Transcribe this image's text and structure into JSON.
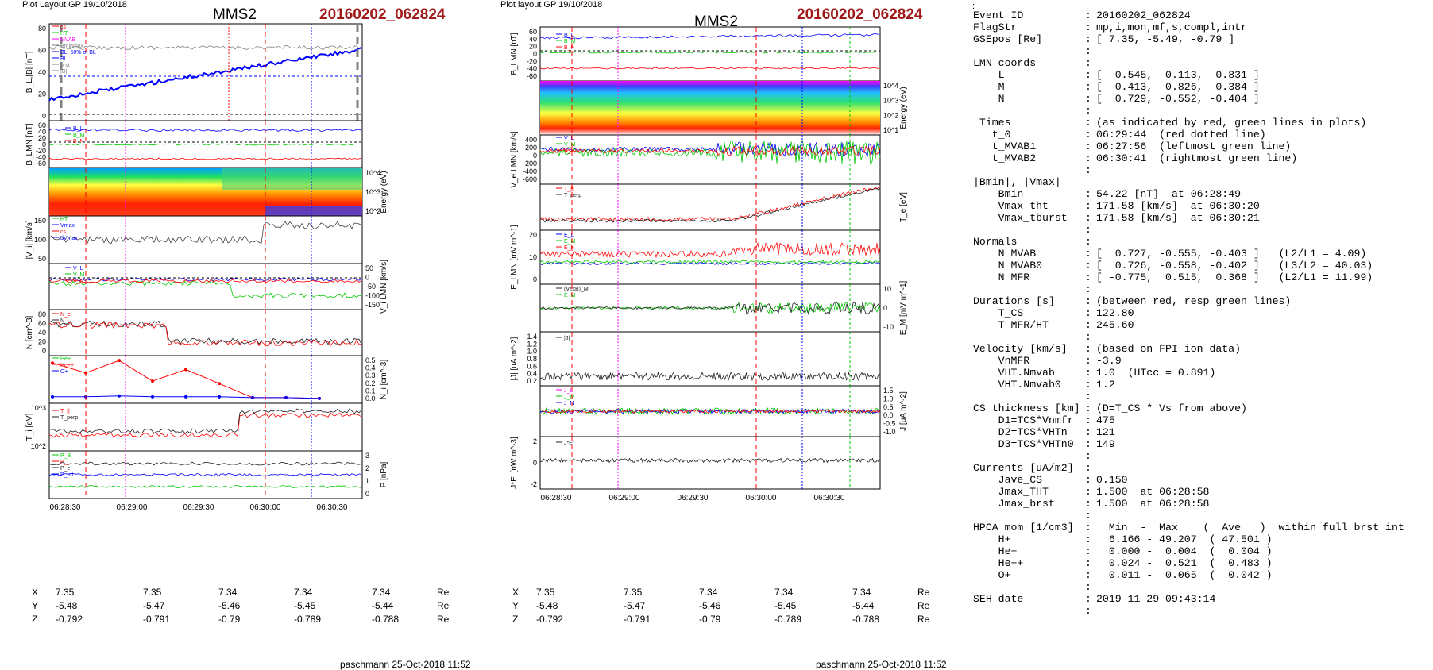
{
  "header": {
    "left_plot_label": "Plot Layout GP 19/10/2018",
    "middle_plot_label": "Plot layout GP 19/10/2018",
    "spacecraft": "MMS2",
    "event": "20160202_062824",
    "top_colon": ":"
  },
  "left_figure": {
    "panels": [
      {
        "ylabel": "B_L,|B| [nT]",
        "ticks": [
          "80",
          "60",
          "40",
          "20",
          "0"
        ],
        "legend": [
          "cs",
          "HT",
          "MVAB",
          "Bminmax",
          "BL, 50% of BL",
          "BL",
          "brst",
          "|B|"
        ]
      },
      {
        "ylabel": "B_LMN [nT]",
        "ticks": [
          "60",
          "40",
          "20",
          "0",
          "-20",
          "-40",
          "-60"
        ],
        "legend": [
          "B_L",
          "B_M",
          "B_N"
        ]
      },
      {
        "ylabel": "Energy (eV)",
        "ticks": [
          "10^4",
          "10^3",
          "10^2"
        ],
        "legend": []
      },
      {
        "ylabel": "|V_i| [km/s]",
        "ticks": [
          "150",
          "100",
          "50"
        ],
        "legend": [
          "HT",
          "Vmax",
          "cs",
          "dVmax"
        ]
      },
      {
        "ylabel": "V_i LMN [km/s]",
        "ticks": [
          "50",
          "0",
          "-50",
          "-100",
          "-150"
        ],
        "legend": [
          "V_L",
          "V_M",
          "V_N"
        ]
      },
      {
        "ylabel": "N [cm^-3]",
        "ticks": [
          "80",
          "60",
          "40",
          "20",
          "0"
        ],
        "legend": [
          "N_e",
          "N_i"
        ]
      },
      {
        "ylabel": "N_i [cm^-3]",
        "ticks": [
          "0.5",
          "0.4",
          "0.3",
          "0.2",
          "0.1",
          "0.0"
        ],
        "legend": [
          "He+",
          "He++",
          "O+"
        ]
      },
      {
        "ylabel": "T_i [eV]",
        "ticks": [
          "10^3",
          "10^2"
        ],
        "legend": [
          "T_||",
          "T_perp"
        ]
      },
      {
        "ylabel": "P [nPa]",
        "ticks": [
          "3",
          "2",
          "1",
          "0"
        ],
        "legend": [
          "P_B",
          "P_i",
          "P_e",
          "P_tot"
        ]
      }
    ]
  },
  "middle_figure": {
    "panels": [
      {
        "ylabel": "B_LMN [nT]",
        "ticks": [
          "60",
          "40",
          "20",
          "0",
          "-20",
          "-40",
          "-60"
        ],
        "legend": [
          "B_L",
          "B_M",
          "B_N"
        ]
      },
      {
        "ylabel": "Energy (eV)",
        "ticks": [
          "10^4",
          "10^3",
          "10^2",
          "10^1"
        ],
        "legend": []
      },
      {
        "ylabel": "V_e LMN [km/s]",
        "ticks": [
          "400",
          "200",
          "0",
          "-200",
          "-400",
          "-600"
        ],
        "legend": [
          "V_L",
          "V_M",
          "V_N"
        ]
      },
      {
        "ylabel": "T_e [eV]",
        "ticks": [],
        "legend": [
          "T_||",
          "T_perp"
        ]
      },
      {
        "ylabel": "E_LMN [mV m^-1]",
        "ticks": [
          "20",
          "10",
          "0"
        ],
        "legend": [
          "E_L",
          "E_M",
          "E_N"
        ]
      },
      {
        "ylabel": "E_M [mV m^-1]",
        "ticks": [
          "10",
          "0",
          "-10"
        ],
        "legend": [
          "(VexB)_M",
          "E_M"
        ]
      },
      {
        "ylabel": "|J| [uA m^-2]",
        "ticks": [
          "1.4",
          "1.2",
          "1.0",
          "0.8",
          "0.6",
          "0.4",
          "0.2"
        ],
        "legend": [
          "|J|"
        ]
      },
      {
        "ylabel": "J [uA m^-2]",
        "ticks": [
          "1.5",
          "1.0",
          "0.5",
          "0.0",
          "-0.5",
          "-1.0"
        ],
        "legend": [
          "J_L",
          "J_M",
          "J_N"
        ]
      },
      {
        "ylabel": "J*E' [nW m^-3]",
        "ticks": [
          "2",
          "0",
          "-2"
        ],
        "legend": [
          "J*E'"
        ]
      }
    ]
  },
  "time_axis": {
    "ticks": [
      "06:28:30",
      "06:29:00",
      "06:29:30",
      "06:30:00",
      "06:30:30"
    ]
  },
  "position_table": {
    "rows": [
      {
        "label": "X",
        "values": [
          "7.35",
          "7.35",
          "7.34",
          "7.34",
          "7.34"
        ],
        "unit": "Re"
      },
      {
        "label": "Y",
        "values": [
          "-5.48",
          "-5.47",
          "-5.46",
          "-5.45",
          "-5.44"
        ],
        "unit": "Re"
      },
      {
        "label": "Z",
        "values": [
          "-0.792",
          "-0.791",
          "-0.79",
          "-0.789",
          "-0.788"
        ],
        "unit": "Re"
      }
    ]
  },
  "footer": {
    "text": "paschmann 25-Oct-2018 11:52"
  },
  "info_lines": [
    {
      "k": "Event ID",
      "c": ":",
      "v": "20160202_062824"
    },
    {
      "k": "FlagStr",
      "c": ":",
      "v": "mp,i,mon,mf,s,compl,intr"
    },
    {
      "k": "GSEpos [Re]",
      "c": ":",
      "v": "[ 7.35, -5.49, -0.79 ]"
    },
    {
      "k": "",
      "c": ":",
      "v": ""
    },
    {
      "k": "LMN coords",
      "c": ":",
      "v": ""
    },
    {
      "k": "    L",
      "c": ":",
      "v": "[  0.545,  0.113,  0.831 ]"
    },
    {
      "k": "    M",
      "c": ":",
      "v": "[  0.413,  0.826, -0.384 ]"
    },
    {
      "k": "    N",
      "c": ":",
      "v": "[  0.729, -0.552, -0.404 ]"
    },
    {
      "k": "",
      "c": ":",
      "v": ""
    },
    {
      "k": " Times",
      "c": ":",
      "v": "(as indicated by red, green lines in plots)"
    },
    {
      "k": "   t_0",
      "c": ":",
      "v": "06:29:44  (red dotted line)"
    },
    {
      "k": "   t_MVAB1",
      "c": ":",
      "v": "06:27:56  (leftmost green line)"
    },
    {
      "k": "   t_MVAB2",
      "c": ":",
      "v": "06:30:41  (rightmost green line)"
    },
    {
      "k": "",
      "c": ":",
      "v": ""
    },
    {
      "k": "|Bmin|, |Vmax|",
      "c": "",
      "v": ""
    },
    {
      "k": "    Bmin",
      "c": ":",
      "v": "54.22 [nT]  at 06:28:49"
    },
    {
      "k": "    Vmax_tht",
      "c": ":",
      "v": "171.58 [km/s]  at 06:30:20"
    },
    {
      "k": "    Vmax_tburst",
      "c": ":",
      "v": "171.58 [km/s]  at 06:30:21"
    },
    {
      "k": "",
      "c": ":",
      "v": ""
    },
    {
      "k": "Normals",
      "c": ":",
      "v": ""
    },
    {
      "k": "    N MVAB",
      "c": ":",
      "v": "[  0.727, -0.555, -0.403 ]   (L2/L1 = 4.09)"
    },
    {
      "k": "    N MVAB0",
      "c": ":",
      "v": "[  0.726, -0.558, -0.402 ]   (L3/L2 = 40.03)"
    },
    {
      "k": "    N MFR",
      "c": ":",
      "v": "[ -0.775,  0.515,  0.368 ]   (L2/L1 = 11.99)"
    },
    {
      "k": "",
      "c": ":",
      "v": ""
    },
    {
      "k": "Durations [s]",
      "c": ":",
      "v": "(between red, resp green lines)"
    },
    {
      "k": "    T_CS",
      "c": ":",
      "v": "122.80"
    },
    {
      "k": "    T_MFR/HT",
      "c": ":",
      "v": "245.60"
    },
    {
      "k": "",
      "c": ":",
      "v": ""
    },
    {
      "k": "Velocity [km/s]",
      "c": ":",
      "v": "(based on FPI ion data)"
    },
    {
      "k": "    VnMFR",
      "c": ":",
      "v": "-3.9"
    },
    {
      "k": "    VHT.Nmvab",
      "c": ":",
      "v": "1.0  (HTcc = 0.891)"
    },
    {
      "k": "    VHT.Nmvab0",
      "c": ":",
      "v": "1.2"
    },
    {
      "k": "",
      "c": ":",
      "v": ""
    },
    {
      "k": "CS thickness [km]",
      "c": ":",
      "v": "(D=T_CS * Vs from above)"
    },
    {
      "k": "    D1=TCS*Vnmfr",
      "c": ":",
      "v": "475"
    },
    {
      "k": "    D2=TCS*VHTn",
      "c": ":",
      "v": "121"
    },
    {
      "k": "    D3=TCS*VHTn0",
      "c": ":",
      "v": "149"
    },
    {
      "k": "",
      "c": ":",
      "v": ""
    },
    {
      "k": "Currents [uA/m2]",
      "c": ":",
      "v": ""
    },
    {
      "k": "    Jave_CS",
      "c": ":",
      "v": "0.150"
    },
    {
      "k": "    Jmax_THT",
      "c": ":",
      "v": "1.500  at 06:28:58"
    },
    {
      "k": "    Jmax_brst",
      "c": ":",
      "v": "1.500  at 06:28:58"
    },
    {
      "k": "",
      "c": ":",
      "v": ""
    },
    {
      "k": "HPCA mom [1/cm3]",
      "c": ":",
      "v": "  Min  -  Max    (  Ave   )  within full brst int"
    },
    {
      "k": "    H+",
      "c": ":",
      "v": "  6.166 - 49.207  ( 47.501 )"
    },
    {
      "k": "    He+",
      "c": ":",
      "v": "  0.000 -  0.004  (  0.004 )"
    },
    {
      "k": "    He++",
      "c": ":",
      "v": "  0.024 -  0.521  (  0.483 )"
    },
    {
      "k": "    O+",
      "c": ":",
      "v": "  0.011 -  0.065  (  0.042 )"
    },
    {
      "k": "",
      "c": ":",
      "v": ""
    },
    {
      "k": "SEH date",
      "c": ":",
      "v": "2019-11-29 09:43:14"
    },
    {
      "k": "",
      "c": ":",
      "v": ""
    }
  ],
  "colors": {
    "red": "#ff0000",
    "green": "#00c800",
    "blue": "#0000ff",
    "magenta": "#ff00ff",
    "darkred": "#a01818",
    "grey": "#808080"
  },
  "chart_data": [
    {
      "type": "line",
      "title": "MMS2 20160202_062824 (left figure)",
      "x_ticks": [
        "06:28:30",
        "06:29:00",
        "06:29:30",
        "06:30:00",
        "06:30:30"
      ],
      "hpca_He_pp_points": [
        0.45,
        0.33,
        0.48,
        0.23,
        0.37,
        0.2,
        0.03,
        0.03,
        0.02
      ],
      "hpca_Oplus_points": [
        0.04,
        0.04,
        0.05,
        0.04,
        0.04,
        0.04,
        0.03,
        0.03,
        0.02
      ],
      "B_L_range": [
        10,
        60
      ],
      "Vi_range": [
        50,
        160
      ]
    },
    {
      "type": "line",
      "title": "MMS2 20160202_062824 (middle figure)",
      "x_ticks": [
        "06:28:30",
        "06:29:00",
        "06:29:30",
        "06:30:00",
        "06:30:30"
      ],
      "J_peak": 1.4,
      "JE_peak": 3
    }
  ]
}
